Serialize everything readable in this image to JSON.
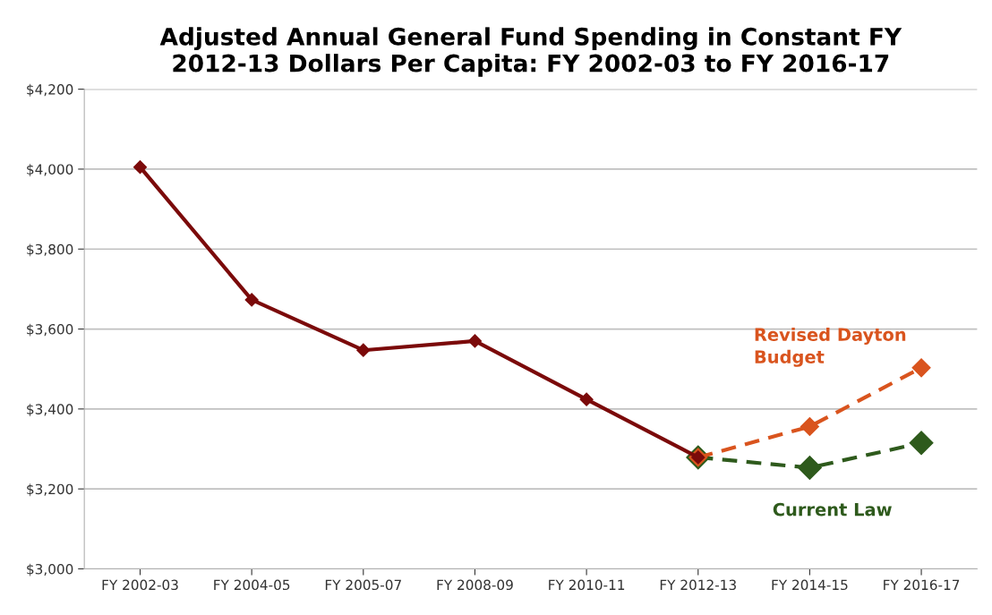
{
  "chart_data": {
    "type": "line",
    "title": "Adjusted Annual General Fund Spending in Constant FY\n2012-13 Dollars Per Capita: FY 2002-03 to FY 2016-17",
    "categories": [
      "FY 2002-03",
      "FY 2004-05",
      "FY 2005-07",
      "FY 2008-09",
      "FY 2010-11",
      "FY 2012-13",
      "FY 2014-15",
      "FY 2016-17"
    ],
    "series": [
      {
        "color": "#7b0a0a",
        "line_style": "solid",
        "values": [
          4005,
          3673,
          3547,
          3570,
          3424,
          3279,
          null,
          null
        ]
      },
      {
        "name": "Revised Dayton\nBudget",
        "color": "#d9541e",
        "line_style": "dashed",
        "values": [
          null,
          null,
          null,
          null,
          null,
          3279,
          3356,
          3503
        ]
      },
      {
        "name": "Current Law",
        "color": "#2e5a1c",
        "line_style": "dashed",
        "values": [
          null,
          null,
          null,
          null,
          null,
          3279,
          3253,
          3315
        ]
      }
    ],
    "ylim": [
      3000,
      4200
    ],
    "yticks": [
      {
        "value": 3000,
        "label": "$3,000"
      },
      {
        "value": 3200,
        "label": "$3,200"
      },
      {
        "value": 3400,
        "label": "$3,400"
      },
      {
        "value": 3600,
        "label": "$3,600"
      },
      {
        "value": 3800,
        "label": "$3,800"
      },
      {
        "value": 4000,
        "label": "$4,000"
      },
      {
        "value": 4200,
        "label": "$4,200"
      }
    ],
    "grid": "y",
    "legend": false,
    "marker": "diamond"
  }
}
